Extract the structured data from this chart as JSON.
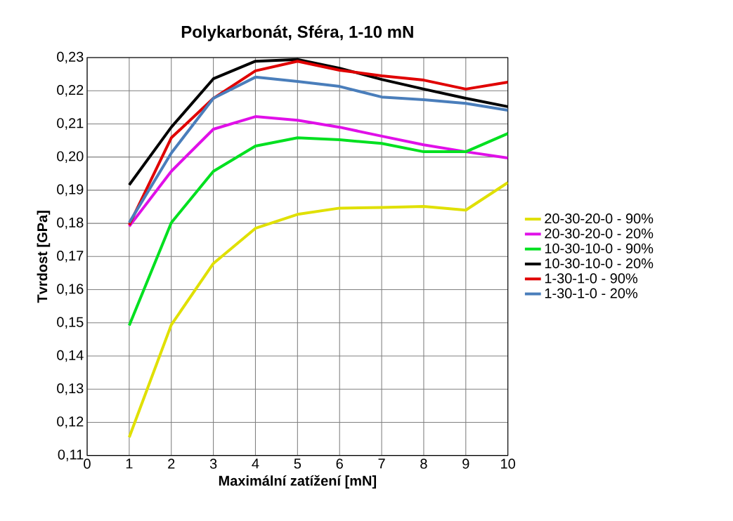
{
  "chart_data": {
    "type": "line",
    "title": "Polykarbonát, Sféra, 1-10 mN",
    "xlabel": "Maximální zatížení [mN]",
    "ylabel": "Tvrdost [GPa]",
    "x": [
      1,
      2,
      3,
      4,
      5,
      6,
      7,
      8,
      9,
      10
    ],
    "series": [
      {
        "name": "20-30-20-0 - 90%",
        "color": "#e0e000",
        "values": [
          0.1155,
          0.1494,
          0.1679,
          0.1785,
          0.1827,
          0.1846,
          0.1848,
          0.1851,
          0.184,
          0.1923
        ]
      },
      {
        "name": "20-30-20-0 - 20%",
        "color": "#e010e8",
        "values": [
          0.1791,
          0.1957,
          0.2084,
          0.2122,
          0.2111,
          0.209,
          0.2063,
          0.2037,
          0.2016,
          0.1997
        ]
      },
      {
        "name": "10-30-10-0 - 90%",
        "color": "#00e020",
        "values": [
          0.1492,
          0.1802,
          0.1957,
          0.2033,
          0.2058,
          0.2052,
          0.2041,
          0.2016,
          0.2016,
          0.2071
        ]
      },
      {
        "name": "10-30-10-0 - 20%",
        "color": "#000000",
        "values": [
          0.1916,
          0.209,
          0.2236,
          0.2289,
          0.2294,
          0.2268,
          0.2234,
          0.2205,
          0.2177,
          0.2152
        ]
      },
      {
        "name": "1-30-1-0 - 90%",
        "color": "#e00000",
        "values": [
          0.1795,
          0.2058,
          0.2177,
          0.226,
          0.2289,
          0.2262,
          0.2245,
          0.2232,
          0.2205,
          0.2226
        ]
      },
      {
        "name": "1-30-1-0 - 20%",
        "color": "#4a7ebb",
        "values": [
          0.1802,
          0.2012,
          0.2177,
          0.2241,
          0.2228,
          0.2213,
          0.2181,
          0.2173,
          0.2162,
          0.2141
        ]
      }
    ],
    "xlim": [
      0,
      10
    ],
    "xticks": [
      0,
      1,
      2,
      3,
      4,
      5,
      6,
      7,
      8,
      9,
      10
    ],
    "ylim": [
      0.11,
      0.23
    ],
    "yticks": [
      {
        "value": 0.11,
        "label": "0,11"
      },
      {
        "value": 0.12,
        "label": "0,12"
      },
      {
        "value": 0.13,
        "label": "0,13"
      },
      {
        "value": 0.14,
        "label": "0,14"
      },
      {
        "value": 0.15,
        "label": "0,15"
      },
      {
        "value": 0.16,
        "label": "0,16"
      },
      {
        "value": 0.17,
        "label": "0,17"
      },
      {
        "value": 0.18,
        "label": "0,18"
      },
      {
        "value": 0.19,
        "label": "0,19"
      },
      {
        "value": 0.2,
        "label": "0,20"
      },
      {
        "value": 0.21,
        "label": "0,21"
      },
      {
        "value": 0.22,
        "label": "0,22"
      },
      {
        "value": 0.23,
        "label": "0,23"
      }
    ],
    "grid": true,
    "legend": "right",
    "marker": "none",
    "line_style": "solid"
  }
}
